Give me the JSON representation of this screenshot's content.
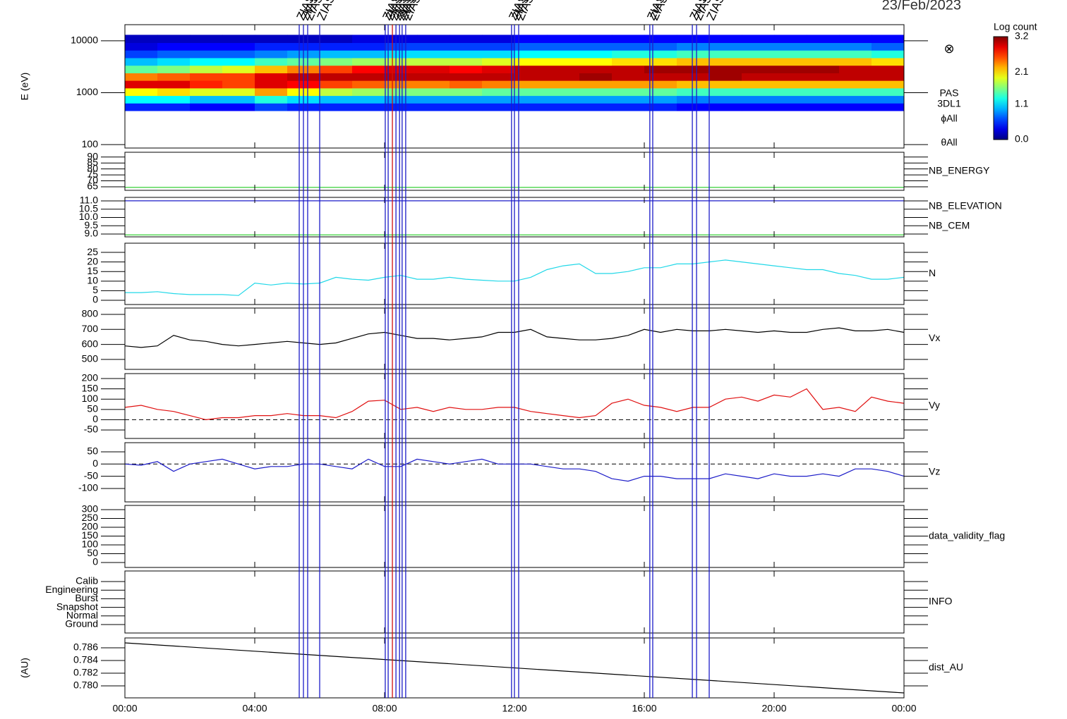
{
  "date": "23/Feb/2023",
  "chart_data": [
    {
      "type": "heatmap",
      "ylabel": "E (eV)",
      "log": true,
      "ylim": [
        86,
        20400
      ],
      "yticks": [
        100,
        1000,
        10000
      ],
      "annotations": [
        "PAS",
        "3DL1",
        "ϕAll",
        "θAll"
      ],
      "symbol": "⊗",
      "colorbar": {
        "label": "Log count",
        "clim": [
          0,
          3.2
        ],
        "ticks": [
          {
            "value": 0,
            "label": "0.0"
          },
          1.1,
          2.1,
          3.2
        ]
      },
      "events": [
        {
          "x": 5.37,
          "label": "ZIAS",
          "color": "#1c1cc8"
        },
        {
          "x": 5.5,
          "label": "ZIAS",
          "color": "#1c1cc8"
        },
        {
          "x": 5.63,
          "label": "ZIAS",
          "color": "#1c1cc8"
        },
        {
          "x": 6.0,
          "label": "ZIAS",
          "color": "#1c1cc8"
        },
        {
          "x": 8.02,
          "label": "ZIAS",
          "color": "#1c1cc8"
        },
        {
          "x": 8.11,
          "label": "ZIAS",
          "color": "#1c1cc8"
        },
        {
          "x": 8.24,
          "label": "ZIAS",
          "color": "#d01010"
        },
        {
          "x": 8.35,
          "label": "ZIAS",
          "color": "#1c1cc8"
        },
        {
          "x": 8.46,
          "label": "ZIAS",
          "color": "#1c1cc8"
        },
        {
          "x": 8.54,
          "label": "ZIAS",
          "color": "#1c1cc8"
        },
        {
          "x": 8.65,
          "label": "ZIAS",
          "color": "#1c1cc8"
        },
        {
          "x": 11.91,
          "label": "ZIAS",
          "color": "#1c1cc8"
        },
        {
          "x": 12.0,
          "label": "ZIAS",
          "color": "#1c1cc8"
        },
        {
          "x": 12.13,
          "label": "ZIAS",
          "color": "#1c1cc8"
        },
        {
          "x": 16.17,
          "label": "ZIAS",
          "color": "#1c1cc8"
        },
        {
          "x": 16.26,
          "label": "ZIAS",
          "color": "#1c1cc8"
        },
        {
          "x": 17.48,
          "label": "ZIAS",
          "color": "#1c1cc8"
        },
        {
          "x": 17.61,
          "label": "ZIAS",
          "color": "#1c1cc8"
        },
        {
          "x": 18.0,
          "label": "ZIAS",
          "color": "#1c1cc8"
        }
      ],
      "xlim": [
        0,
        24
      ],
      "xbins": [
        0,
        1,
        2,
        3,
        4,
        5,
        6,
        7,
        8,
        9,
        10,
        11,
        12,
        13,
        14,
        15,
        16,
        17,
        18,
        19,
        20,
        21,
        22,
        23,
        24
      ],
      "ybins": [
        450,
        630,
        880,
        1230,
        1720,
        2400,
        3360,
        4700,
        6580,
        9200,
        13000
      ],
      "z": [
        [
          0.5,
          1.2,
          2.0,
          2.9,
          2.4,
          1.5,
          1.0,
          0.6,
          0.3,
          0.2
        ],
        [
          0.5,
          1.2,
          2.1,
          2.9,
          2.5,
          1.6,
          1.1,
          0.7,
          0.4,
          0.2
        ],
        [
          0.4,
          1.0,
          1.9,
          2.7,
          2.6,
          1.8,
          1.2,
          0.7,
          0.4,
          0.2
        ],
        [
          0.4,
          1.0,
          1.9,
          2.6,
          2.6,
          1.9,
          1.2,
          0.7,
          0.4,
          0.2
        ],
        [
          0.6,
          1.3,
          2.3,
          2.9,
          2.9,
          2.2,
          1.4,
          0.8,
          0.5,
          0.2
        ],
        [
          0.5,
          1.1,
          2.0,
          2.8,
          3.0,
          2.4,
          1.5,
          0.9,
          0.5,
          0.2
        ],
        [
          0.5,
          1.0,
          1.8,
          2.6,
          3.0,
          2.6,
          1.6,
          1.0,
          0.5,
          0.2
        ],
        [
          0.5,
          1.0,
          1.7,
          2.5,
          3.0,
          2.8,
          1.7,
          1.0,
          0.5,
          0.3
        ],
        [
          0.5,
          0.9,
          1.6,
          2.4,
          3.0,
          2.9,
          1.8,
          1.1,
          0.6,
          0.3
        ],
        [
          0.5,
          0.9,
          1.6,
          2.4,
          3.0,
          2.9,
          1.8,
          1.1,
          0.6,
          0.3
        ],
        [
          0.5,
          0.9,
          1.6,
          2.5,
          3.0,
          2.8,
          1.8,
          1.1,
          0.6,
          0.3
        ],
        [
          0.5,
          0.9,
          1.5,
          2.4,
          3.0,
          2.9,
          1.9,
          1.1,
          0.6,
          0.3
        ],
        [
          0.5,
          0.9,
          1.5,
          2.3,
          3.0,
          3.0,
          2.0,
          1.2,
          0.7,
          0.4
        ],
        [
          0.5,
          0.9,
          1.5,
          2.3,
          3.0,
          3.0,
          2.0,
          1.2,
          0.7,
          0.4
        ],
        [
          0.5,
          0.9,
          1.5,
          2.3,
          3.1,
          3.0,
          2.0,
          1.2,
          0.7,
          0.4
        ],
        [
          0.5,
          0.9,
          1.5,
          2.3,
          3.0,
          3.0,
          2.1,
          1.3,
          0.7,
          0.4
        ],
        [
          0.5,
          0.9,
          1.5,
          2.3,
          3.0,
          3.1,
          2.1,
          1.3,
          0.7,
          0.4
        ],
        [
          0.4,
          0.8,
          1.4,
          2.2,
          3.0,
          3.1,
          2.2,
          1.4,
          0.8,
          0.4
        ],
        [
          0.4,
          0.8,
          1.4,
          2.2,
          3.1,
          3.1,
          2.2,
          1.4,
          0.8,
          0.4
        ],
        [
          0.4,
          0.8,
          1.4,
          2.2,
          3.0,
          3.1,
          2.2,
          1.4,
          0.8,
          0.4
        ],
        [
          0.4,
          0.8,
          1.4,
          2.2,
          3.0,
          3.1,
          2.2,
          1.4,
          0.8,
          0.4
        ],
        [
          0.4,
          0.8,
          1.4,
          2.2,
          3.0,
          3.1,
          2.2,
          1.4,
          0.8,
          0.4
        ],
        [
          0.4,
          0.8,
          1.4,
          2.2,
          3.0,
          3.0,
          2.2,
          1.4,
          0.8,
          0.4
        ],
        [
          0.4,
          0.8,
          1.4,
          2.2,
          3.0,
          3.0,
          2.1,
          1.3,
          0.7,
          0.4
        ]
      ]
    },
    {
      "type": "line",
      "ylim": [
        62,
        94
      ],
      "yticks": [
        65,
        70,
        75,
        80,
        85,
        90
      ],
      "xlim": [
        0,
        24
      ],
      "x": [
        0,
        24
      ],
      "series": [
        {
          "name": "NB_ENERGY",
          "color": "#22cc22",
          "values": [
            64.5,
            64.5
          ]
        }
      ]
    },
    {
      "type": "line",
      "ylim": [
        8.83,
        11.21
      ],
      "yticks": [
        {
          "value": 9,
          "label": "9.0"
        },
        9.5,
        {
          "value": 10,
          "label": "10.0"
        },
        10.5,
        {
          "value": 11,
          "label": "11.0"
        }
      ],
      "xlim": [
        0,
        24
      ],
      "x": [
        0,
        24
      ],
      "series": [
        {
          "name": "NB_ELEVATION",
          "color": "#22cc22",
          "values": [
            8.95,
            8.95
          ]
        },
        {
          "name": "NB_CEM",
          "color": "#1c1cc8",
          "values": [
            11.0,
            11.0
          ]
        }
      ]
    },
    {
      "type": "line",
      "ylim": [
        -2.2,
        29.8
      ],
      "yticks": [
        0,
        5,
        10,
        15,
        20,
        25
      ],
      "xlim": [
        0,
        24
      ],
      "x": [
        0,
        0.5,
        1,
        1.5,
        2,
        2.5,
        3,
        3.5,
        4,
        4.5,
        5,
        5.5,
        6,
        6.5,
        7,
        7.5,
        8,
        8.5,
        9,
        9.5,
        10,
        10.5,
        11,
        11.5,
        12,
        12.5,
        13,
        13.5,
        14,
        14.5,
        15,
        15.5,
        16,
        16.5,
        17,
        17.5,
        18,
        18.5,
        19,
        19.5,
        20,
        20.5,
        21,
        21.5,
        22,
        22.5,
        23,
        23.5,
        24
      ],
      "series": [
        {
          "name": "N",
          "color": "#22d8e8",
          "values": [
            4,
            4,
            4.5,
            3.5,
            3,
            3,
            3,
            2.5,
            9,
            8,
            9,
            8.5,
            9,
            12,
            11,
            10.5,
            12,
            13,
            11,
            11,
            12,
            11,
            10.5,
            10,
            10,
            12,
            16,
            18,
            19,
            14,
            14,
            15,
            17,
            17,
            19,
            19,
            20,
            21,
            20,
            19,
            18,
            17,
            16,
            16,
            14,
            13,
            11,
            11,
            12
          ]
        }
      ]
    },
    {
      "type": "line",
      "ylim": [
        434,
        842
      ],
      "yticks": [
        500,
        600,
        700,
        800
      ],
      "xlim": [
        0,
        24
      ],
      "x": [
        0,
        0.5,
        1,
        1.5,
        2,
        2.5,
        3,
        3.5,
        4,
        4.5,
        5,
        5.5,
        6,
        6.5,
        7,
        7.5,
        8,
        8.5,
        9,
        9.5,
        10,
        10.5,
        11,
        11.5,
        12,
        12.5,
        13,
        13.5,
        14,
        14.5,
        15,
        15.5,
        16,
        16.5,
        17,
        17.5,
        18,
        18.5,
        19,
        19.5,
        20,
        20.5,
        21,
        21.5,
        22,
        22.5,
        23,
        23.5,
        24
      ],
      "series": [
        {
          "name": "Vx",
          "color": "#000000",
          "values": [
            590,
            580,
            590,
            660,
            630,
            620,
            600,
            590,
            600,
            610,
            620,
            610,
            600,
            610,
            640,
            670,
            680,
            660,
            640,
            640,
            630,
            640,
            650,
            680,
            680,
            700,
            650,
            640,
            630,
            630,
            640,
            660,
            700,
            680,
            700,
            690,
            690,
            700,
            690,
            680,
            690,
            680,
            680,
            700,
            710,
            690,
            690,
            700,
            680
          ]
        }
      ]
    },
    {
      "type": "line",
      "ylim": [
        -91,
        224
      ],
      "yticks": [
        -50,
        0,
        50,
        100,
        150,
        200
      ],
      "zero_line": true,
      "xlim": [
        0,
        24
      ],
      "x": [
        0,
        0.5,
        1,
        1.5,
        2,
        2.5,
        3,
        3.5,
        4,
        4.5,
        5,
        5.5,
        6,
        6.5,
        7,
        7.5,
        8,
        8.5,
        9,
        9.5,
        10,
        10.5,
        11,
        11.5,
        12,
        12.5,
        13,
        13.5,
        14,
        14.5,
        15,
        15.5,
        16,
        16.5,
        17,
        17.5,
        18,
        18.5,
        19,
        19.5,
        20,
        20.5,
        21,
        21.5,
        22,
        22.5,
        23,
        23.5,
        24
      ],
      "series": [
        {
          "name": "Vy",
          "color": "#e01010",
          "values": [
            60,
            70,
            50,
            40,
            20,
            0,
            10,
            10,
            20,
            20,
            30,
            20,
            20,
            10,
            40,
            90,
            95,
            50,
            60,
            40,
            60,
            50,
            50,
            60,
            60,
            40,
            30,
            20,
            10,
            20,
            80,
            100,
            70,
            60,
            40,
            60,
            60,
            100,
            110,
            90,
            120,
            110,
            150,
            50,
            60,
            40,
            110,
            90,
            80
          ]
        }
      ]
    },
    {
      "type": "line",
      "ylim": [
        -155,
        87.5
      ],
      "yticks": [
        -100,
        -50,
        0,
        50
      ],
      "zero_line": true,
      "xlim": [
        0,
        24
      ],
      "x": [
        0,
        0.5,
        1,
        1.5,
        2,
        2.5,
        3,
        3.5,
        4,
        4.5,
        5,
        5.5,
        6,
        6.5,
        7,
        7.5,
        8,
        8.5,
        9,
        9.5,
        10,
        10.5,
        11,
        11.5,
        12,
        12.5,
        13,
        13.5,
        14,
        14.5,
        15,
        15.5,
        16,
        16.5,
        17,
        17.5,
        18,
        18.5,
        19,
        19.5,
        20,
        20.5,
        21,
        21.5,
        22,
        22.5,
        23,
        23.5,
        24
      ],
      "series": [
        {
          "name": "Vz",
          "color": "#1c1cc8",
          "values": [
            0,
            -5,
            10,
            -30,
            0,
            10,
            20,
            0,
            -20,
            -10,
            -10,
            0,
            0,
            -10,
            -20,
            20,
            -10,
            -10,
            20,
            10,
            0,
            10,
            20,
            0,
            0,
            0,
            -10,
            -20,
            -20,
            -30,
            -60,
            -70,
            -50,
            -50,
            -60,
            -60,
            -60,
            -40,
            -50,
            -60,
            -40,
            -50,
            -50,
            -40,
            -50,
            -20,
            -20,
            -30,
            -50
          ]
        }
      ]
    },
    {
      "type": "empty",
      "ylim": [
        -28,
        324
      ],
      "yticks": [
        0,
        50,
        100,
        150,
        200,
        250,
        300
      ],
      "xlim": [
        0,
        24
      ],
      "right_label": "data_validity_flag"
    },
    {
      "type": "category",
      "categories": [
        "Calib",
        "Engineering",
        "Burst",
        "Snapshot",
        "Normal",
        "Ground"
      ],
      "xlim": [
        0,
        24
      ],
      "right_label": "INFO"
    },
    {
      "type": "line",
      "ylabel": "(AU)",
      "ylim": [
        0.77811,
        0.78756
      ],
      "yticks": [
        {
          "value": 0.78,
          "label": "0.780"
        },
        0.782,
        0.784,
        0.786
      ],
      "xlim": [
        0,
        24
      ],
      "x": [
        0,
        24
      ],
      "xticks": [
        {
          "value": 0,
          "label": "00:00"
        },
        {
          "value": 4,
          "label": "04:00"
        },
        {
          "value": 8,
          "label": "08:00"
        },
        {
          "value": 12,
          "label": "12:00"
        },
        {
          "value": 16,
          "label": "16:00"
        },
        {
          "value": 20,
          "label": "20:00"
        },
        {
          "value": 24,
          "label": "00:00"
        }
      ],
      "series": [
        {
          "name": "dist_AU",
          "color": "#000000",
          "values": [
            0.78678,
            0.77889
          ]
        }
      ]
    }
  ]
}
